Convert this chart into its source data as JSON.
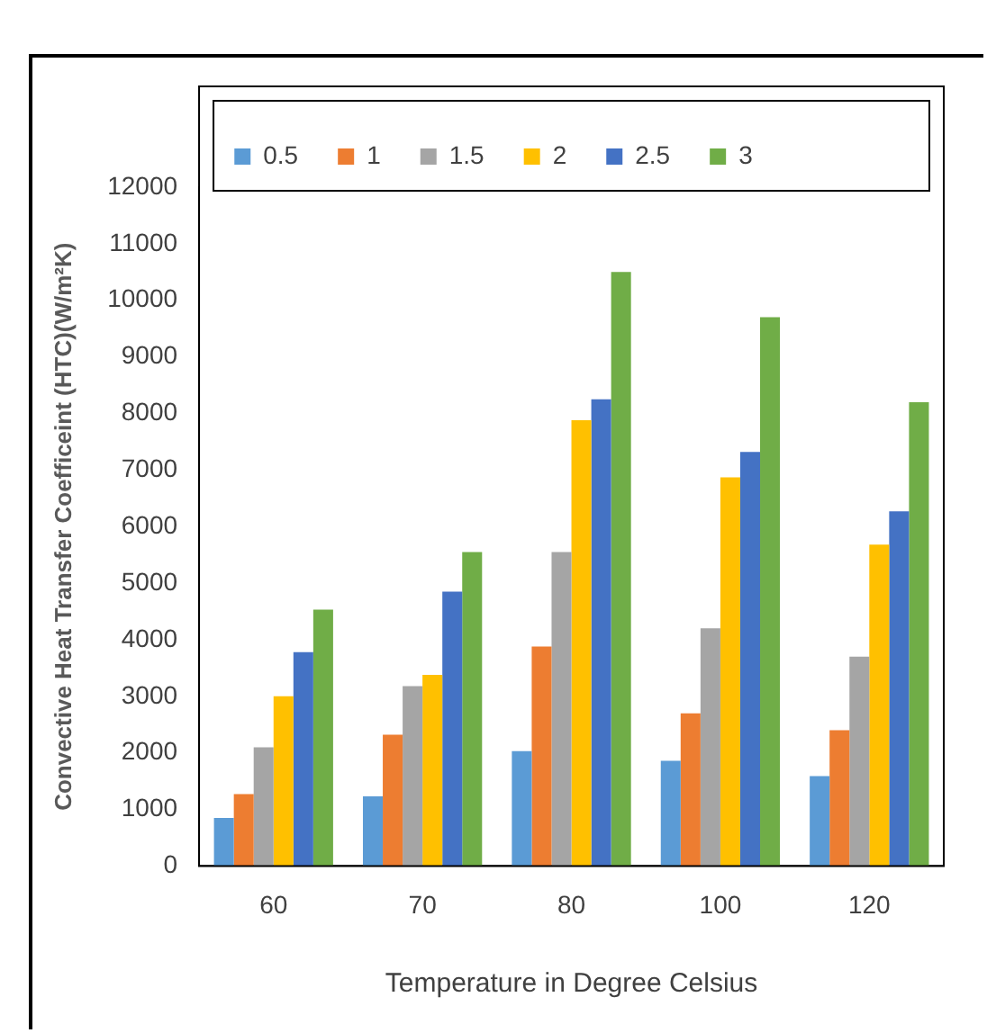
{
  "chart_data": {
    "type": "bar",
    "xlabel": "Temperature in Degree Celsius",
    "ylabel": "Convective Heat Transfer Coefficeint (HTC)(W/m²K)",
    "categories": [
      "60",
      "70",
      "80",
      "100",
      "120"
    ],
    "series": [
      {
        "name": "0.5",
        "color": "#5b9bd5",
        "values": [
          850,
          1230,
          2030,
          1860,
          1590
        ]
      },
      {
        "name": "1",
        "color": "#ed7d31",
        "values": [
          1270,
          2320,
          3880,
          2700,
          2400
        ]
      },
      {
        "name": "1.5",
        "color": "#a5a5a5",
        "values": [
          2100,
          3180,
          5550,
          4200,
          3700
        ]
      },
      {
        "name": "2",
        "color": "#ffc000",
        "values": [
          3000,
          3380,
          7880,
          6870,
          5680
        ]
      },
      {
        "name": "2.5",
        "color": "#4472c4",
        "values": [
          3780,
          4850,
          8250,
          7320,
          6270
        ]
      },
      {
        "name": "3",
        "color": "#70ad47",
        "values": [
          4530,
          5550,
          10500,
          9700,
          8200
        ]
      }
    ],
    "ylim": [
      0,
      12000
    ],
    "yticks": [
      0,
      1000,
      2000,
      3000,
      4000,
      5000,
      6000,
      7000,
      8000,
      9000,
      10000,
      11000,
      12000
    ],
    "grid": false,
    "legend": "top"
  }
}
